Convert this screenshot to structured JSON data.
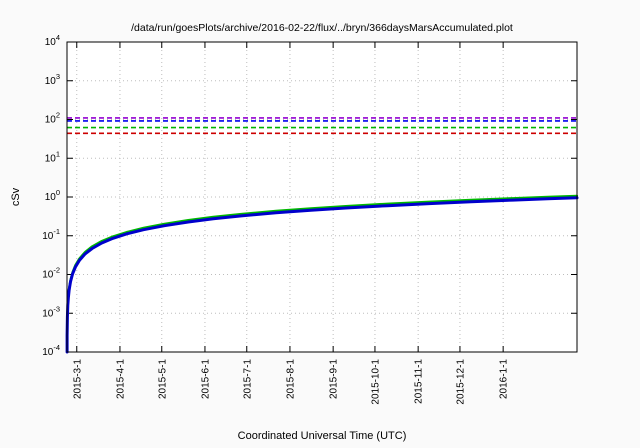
{
  "title": "/data/run/goesPlots/archive/2016-02-22/flux/../bryn/366daysMarsAccumulated.plot",
  "chart_data": {
    "type": "line",
    "title": "/data/run/goesPlots/archive/2016-02-22/flux/../bryn/366daysMarsAccumulated.plot",
    "xlabel": "Coordinated Universal Time (UTC)",
    "ylabel": "cSv",
    "y_scale": "log10",
    "ylim_exp": [
      -4,
      4
    ],
    "y_tick_exponents": [
      4,
      3,
      2,
      1,
      0,
      -1,
      -2,
      -3,
      -4
    ],
    "x_domain_days": [
      0,
      366
    ],
    "x_ticks": [
      {
        "label": "2015-3-1",
        "day": 7
      },
      {
        "label": "2015-4-1",
        "day": 38
      },
      {
        "label": "2015-5-1",
        "day": 68
      },
      {
        "label": "2015-6-1",
        "day": 99
      },
      {
        "label": "2015-7-1",
        "day": 129
      },
      {
        "label": "2015-8-1",
        "day": 160
      },
      {
        "label": "2015-9-1",
        "day": 191
      },
      {
        "label": "2015-10-1",
        "day": 221
      },
      {
        "label": "2015-11-1",
        "day": 252
      },
      {
        "label": "2015-12-1",
        "day": 282
      },
      {
        "label": "2016-1-1",
        "day": 313
      }
    ],
    "grid": {
      "style": "dotted",
      "color": "#bdbdbd"
    },
    "limit_lines": [
      {
        "name": "dose-limit-line-purple",
        "color": "#9400d3",
        "value_cSv": 110,
        "style": "dashed"
      },
      {
        "name": "dose-limit-line-blue",
        "color": "#0000ee",
        "value_cSv": 92,
        "style": "dashed"
      },
      {
        "name": "dose-limit-line-green",
        "color": "#00b400",
        "value_cSv": 62,
        "style": "dashed"
      },
      {
        "name": "dose-limit-line-red",
        "color": "#cc0000",
        "value_cSv": 44,
        "style": "dashed"
      }
    ],
    "series": [
      {
        "name": "accumulated-dose-green",
        "color": "#00b800",
        "width": 2.2,
        "points": [
          [
            0.04,
            0.00011
          ],
          [
            0.1,
            0.00029
          ],
          [
            0.3,
            0.00087
          ],
          [
            0.6,
            0.0018
          ],
          [
            1,
            0.0029
          ],
          [
            1.5,
            0.0044
          ],
          [
            2.5,
            0.0073
          ],
          [
            4,
            0.0116
          ],
          [
            6,
            0.0175
          ],
          [
            9,
            0.0262
          ],
          [
            13,
            0.038
          ],
          [
            18,
            0.053
          ],
          [
            25,
            0.073
          ],
          [
            33,
            0.096
          ],
          [
            43,
            0.125
          ],
          [
            55,
            0.16
          ],
          [
            70,
            0.204
          ],
          [
            87,
            0.253
          ],
          [
            105,
            0.306
          ],
          [
            125,
            0.364
          ],
          [
            150,
            0.437
          ],
          [
            175,
            0.51
          ],
          [
            200,
            0.582
          ],
          [
            230,
            0.67
          ],
          [
            260,
            0.757
          ],
          [
            290,
            0.845
          ],
          [
            320,
            0.932
          ],
          [
            345,
            1.005
          ],
          [
            366,
            1.066
          ]
        ]
      },
      {
        "name": "accumulated-dose-blue",
        "color": "#0000cc",
        "width": 3,
        "points": [
          [
            0.04,
            0.0001
          ],
          [
            0.1,
            0.00026
          ],
          [
            0.3,
            0.00078
          ],
          [
            0.6,
            0.0016
          ],
          [
            1,
            0.0026
          ],
          [
            1.5,
            0.0039
          ],
          [
            2.5,
            0.0065
          ],
          [
            4,
            0.0104
          ],
          [
            6,
            0.0156
          ],
          [
            9,
            0.0234
          ],
          [
            13,
            0.034
          ],
          [
            18,
            0.047
          ],
          [
            25,
            0.065
          ],
          [
            33,
            0.086
          ],
          [
            43,
            0.112
          ],
          [
            55,
            0.143
          ],
          [
            70,
            0.182
          ],
          [
            87,
            0.226
          ],
          [
            105,
            0.273
          ],
          [
            125,
            0.325
          ],
          [
            150,
            0.39
          ],
          [
            175,
            0.455
          ],
          [
            200,
            0.52
          ],
          [
            230,
            0.598
          ],
          [
            260,
            0.676
          ],
          [
            290,
            0.754
          ],
          [
            320,
            0.832
          ],
          [
            345,
            0.897
          ],
          [
            366,
            0.952
          ]
        ]
      }
    ]
  }
}
